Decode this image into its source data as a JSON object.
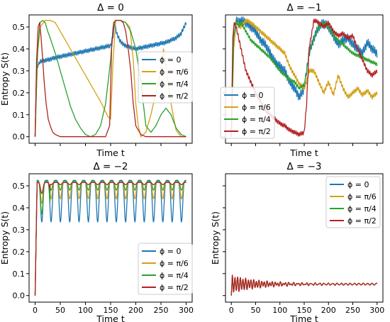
{
  "colors": {
    "phi_0": "#1f77b4",
    "phi_pi6": "#d4a017",
    "phi_pi4": "#2ca02c",
    "phi_pi2": "#b22222"
  },
  "chart_data": [
    {
      "type": "line",
      "title": "Δ = 0",
      "xlabel": "Time t",
      "ylabel": "Entropy S(t)",
      "xlim": [
        -12,
        312
      ],
      "ylim": [
        -0.03,
        0.555
      ],
      "x_tick_labels_visible": false,
      "yticks": [
        "0.0",
        "0.1",
        "0.2",
        "0.3",
        "0.4",
        "0.5"
      ],
      "legend": "center-right",
      "series": [
        {
          "name": "ϕ = 0",
          "color_key": "phi_0",
          "x": [
            0,
            3,
            8,
            15,
            25,
            40,
            60,
            80,
            100,
            120,
            140,
            150,
            155,
            158,
            162,
            168,
            175,
            185,
            200,
            220,
            240,
            260,
            280,
            290,
            300
          ],
          "y": [
            0.0,
            0.3,
            0.34,
            0.345,
            0.35,
            0.36,
            0.37,
            0.38,
            0.39,
            0.4,
            0.41,
            0.415,
            0.46,
            0.52,
            0.47,
            0.44,
            0.42,
            0.41,
            0.4,
            0.41,
            0.42,
            0.43,
            0.45,
            0.47,
            0.52
          ],
          "ripple": 0.01
        },
        {
          "name": "ϕ = π/6",
          "color_key": "phi_pi6",
          "x": [
            0,
            5,
            10,
            20,
            30,
            40,
            50,
            70,
            90,
            110,
            130,
            145,
            150,
            155,
            160,
            170,
            180,
            188,
            195,
            200,
            205,
            210,
            220,
            230,
            240,
            250,
            255,
            260,
            270,
            280,
            290,
            300
          ],
          "y": [
            0.0,
            0.38,
            0.5,
            0.53,
            0.53,
            0.52,
            0.48,
            0.4,
            0.32,
            0.24,
            0.16,
            0.09,
            0.08,
            0.35,
            0.53,
            0.53,
            0.52,
            0.5,
            0.35,
            0.15,
            0.05,
            0.0,
            0.02,
            0.1,
            0.2,
            0.3,
            0.4,
            0.32,
            0.15,
            0.03,
            0.0,
            0.0
          ]
        },
        {
          "name": "ϕ = π/4",
          "color_key": "phi_pi4",
          "x": [
            0,
            5,
            10,
            15,
            20,
            25,
            30,
            40,
            50,
            60,
            70,
            80,
            90,
            100,
            110,
            120,
            130,
            140,
            150,
            155,
            160,
            170,
            180,
            190,
            200,
            210,
            220,
            230,
            240,
            250,
            260,
            270,
            280,
            290,
            300
          ],
          "y": [
            0.0,
            0.4,
            0.52,
            0.53,
            0.52,
            0.48,
            0.45,
            0.38,
            0.3,
            0.22,
            0.14,
            0.08,
            0.04,
            0.01,
            0.0,
            0.01,
            0.05,
            0.15,
            0.35,
            0.5,
            0.53,
            0.53,
            0.52,
            0.48,
            0.4,
            0.25,
            0.05,
            0.02,
            0.05,
            0.1,
            0.13,
            0.1,
            0.04,
            0.01,
            0.0
          ]
        },
        {
          "name": "ϕ = π/2",
          "color_key": "phi_pi2",
          "x": [
            0,
            3,
            6,
            9,
            12,
            15,
            18,
            22,
            26,
            30,
            35,
            40,
            50,
            60,
            80,
            100,
            120,
            140,
            148,
            152,
            156,
            160,
            165,
            170,
            175,
            180,
            185,
            190,
            195,
            200,
            210,
            220,
            240,
            260,
            280,
            300
          ],
          "y": [
            0.0,
            0.35,
            0.5,
            0.52,
            0.45,
            0.35,
            0.25,
            0.15,
            0.08,
            0.05,
            0.02,
            0.01,
            0.0,
            0.0,
            0.0,
            0.0,
            0.0,
            0.0,
            0.05,
            0.4,
            0.52,
            0.53,
            0.53,
            0.53,
            0.52,
            0.48,
            0.4,
            0.3,
            0.15,
            0.05,
            0.01,
            0.0,
            0.0,
            0.0,
            0.0,
            0.0
          ]
        }
      ]
    },
    {
      "type": "line",
      "title": "Δ = −1",
      "xlabel": "Time t",
      "ylabel": "",
      "xlim": [
        -12,
        312
      ],
      "ylim": [
        -0.03,
        0.555
      ],
      "x_tick_labels_visible": false,
      "y_tick_labels_visible": false,
      "legend": "center-left",
      "series": [
        {
          "name": "ϕ = 0",
          "color_key": "phi_0",
          "x": [
            0,
            5,
            10,
            15,
            20,
            30,
            40,
            50,
            60,
            70,
            80,
            90,
            100,
            110,
            120,
            130,
            140,
            150,
            155,
            160,
            170,
            180,
            190,
            200,
            210,
            220,
            230,
            240,
            250,
            260,
            270,
            280,
            290,
            300
          ],
          "y": [
            0.0,
            0.5,
            0.53,
            0.52,
            0.53,
            0.52,
            0.5,
            0.48,
            0.44,
            0.42,
            0.38,
            0.34,
            0.32,
            0.3,
            0.25,
            0.22,
            0.18,
            0.22,
            0.3,
            0.38,
            0.45,
            0.5,
            0.52,
            0.5,
            0.46,
            0.42,
            0.44,
            0.45,
            0.42,
            0.4,
            0.38,
            0.43,
            0.4,
            0.38
          ],
          "ripple": 0.02
        },
        {
          "name": "ϕ = π/6",
          "color_key": "phi_pi6",
          "x": [
            0,
            5,
            10,
            20,
            30,
            40,
            50,
            60,
            70,
            80,
            90,
            100,
            110,
            120,
            130,
            140,
            150,
            155,
            160,
            170,
            180,
            190,
            200,
            210,
            220,
            230,
            240,
            250,
            260,
            270,
            280,
            290,
            300
          ],
          "y": [
            0.0,
            0.4,
            0.52,
            0.5,
            0.53,
            0.52,
            0.5,
            0.48,
            0.46,
            0.44,
            0.42,
            0.4,
            0.38,
            0.32,
            0.28,
            0.24,
            0.22,
            0.25,
            0.3,
            0.3,
            0.25,
            0.2,
            0.25,
            0.19,
            0.28,
            0.22,
            0.18,
            0.2,
            0.22,
            0.19,
            0.21,
            0.18,
            0.2
          ],
          "ripple": 0.01
        },
        {
          "name": "ϕ = π/4",
          "color_key": "phi_pi4",
          "x": [
            0,
            5,
            10,
            15,
            20,
            30,
            40,
            50,
            60,
            70,
            80,
            90,
            100,
            110,
            120,
            130,
            140,
            150,
            155,
            160,
            170,
            180,
            190,
            200,
            210,
            220,
            230,
            240,
            250,
            260,
            270,
            280,
            290,
            300
          ],
          "y": [
            0.0,
            0.45,
            0.53,
            0.5,
            0.52,
            0.48,
            0.44,
            0.42,
            0.4,
            0.38,
            0.36,
            0.33,
            0.3,
            0.28,
            0.26,
            0.25,
            0.22,
            0.24,
            0.3,
            0.38,
            0.45,
            0.5,
            0.52,
            0.5,
            0.46,
            0.44,
            0.42,
            0.4,
            0.38,
            0.37,
            0.36,
            0.35,
            0.34,
            0.33
          ],
          "ripple": 0.008
        },
        {
          "name": "ϕ = π/2",
          "color_key": "phi_pi2",
          "x": [
            0,
            3,
            6,
            10,
            15,
            20,
            25,
            30,
            40,
            50,
            60,
            70,
            80,
            90,
            100,
            110,
            120,
            130,
            140,
            150,
            155,
            160,
            170,
            180,
            190,
            200,
            210,
            220,
            230,
            240,
            250,
            260,
            270,
            280,
            290,
            300
          ],
          "y": [
            0.0,
            0.45,
            0.52,
            0.5,
            0.45,
            0.4,
            0.35,
            0.3,
            0.25,
            0.2,
            0.16,
            0.12,
            0.1,
            0.08,
            0.06,
            0.05,
            0.03,
            0.02,
            0.01,
            0.02,
            0.15,
            0.4,
            0.53,
            0.52,
            0.5,
            0.52,
            0.48,
            0.46,
            0.47,
            0.45,
            0.46,
            0.4,
            0.35,
            0.3,
            0.28,
            0.3
          ],
          "ripple": 0.01
        }
      ]
    },
    {
      "type": "line",
      "title": "Δ = −2",
      "xlabel": "Time t",
      "ylabel": "Entropy S(t)",
      "xlim": [
        -12,
        312
      ],
      "ylim": [
        -0.03,
        0.555
      ],
      "xticks": [
        "0",
        "50",
        "100",
        "150",
        "200",
        "250",
        "300"
      ],
      "yticks": [
        "0.0",
        "0.1",
        "0.2",
        "0.3",
        "0.4",
        "0.5"
      ],
      "legend": "bottom-right",
      "series": [
        {
          "name": "ϕ = 0",
          "color_key": "phi_0",
          "model": "osc",
          "period": 18.5,
          "base": 0.525,
          "depth": 0.19,
          "start_depth": 0.17
        },
        {
          "name": "ϕ = π/6",
          "color_key": "phi_pi6",
          "model": "osc",
          "period": 18.5,
          "base": 0.52,
          "depth": 0.08,
          "start_depth": 0.1
        },
        {
          "name": "ϕ = π/4",
          "color_key": "phi_pi4",
          "model": "osc",
          "period": 18.5,
          "base": 0.52,
          "depth": 0.04,
          "start_depth": 0.15
        },
        {
          "name": "ϕ = π/2",
          "color_key": "phi_pi2",
          "model": "osc",
          "period": 18.5,
          "base": 0.515,
          "depth": 0.01,
          "start_depth": 0.05
        }
      ]
    },
    {
      "type": "line",
      "title": "Δ = −3",
      "xlabel": "Time t",
      "ylabel": "Entropy S(t)",
      "xlim": [
        -12,
        312
      ],
      "ylim": [
        -0.03,
        0.555
      ],
      "xticks": [
        "0",
        "50",
        "100",
        "150",
        "200",
        "250",
        "300"
      ],
      "y_tick_labels_visible": false,
      "legend": "top-right",
      "series": [
        {
          "name": "ϕ = 0",
          "color_key": "phi_0",
          "model": "damped",
          "mean": 0.052,
          "amp": 0.035,
          "period": 5.5
        },
        {
          "name": "ϕ = π/6",
          "color_key": "phi_pi6",
          "model": "damped",
          "mean": 0.052,
          "amp": 0.03,
          "period": 5.5
        },
        {
          "name": "ϕ = π/4",
          "color_key": "phi_pi4",
          "model": "damped",
          "mean": 0.052,
          "amp": 0.032,
          "period": 5.5
        },
        {
          "name": "ϕ = π/2",
          "color_key": "phi_pi2",
          "model": "damped",
          "mean": 0.052,
          "amp": 0.038,
          "period": 5.5
        }
      ]
    }
  ]
}
